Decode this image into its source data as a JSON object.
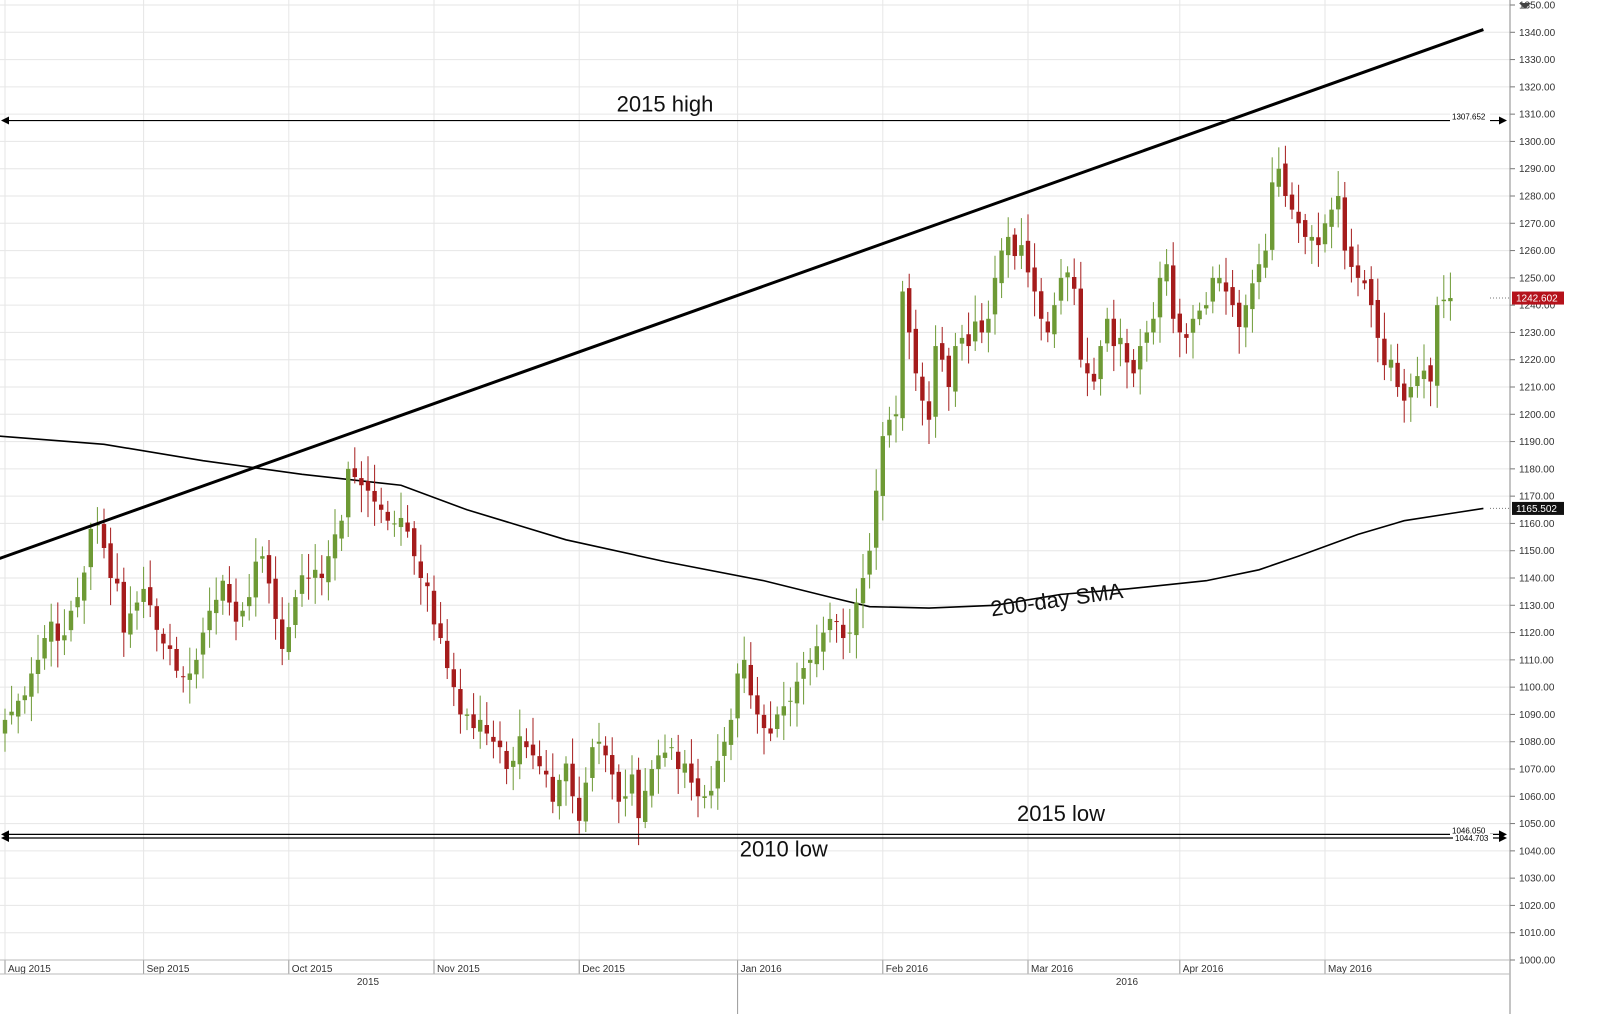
{
  "chart_data": {
    "type": "candlestick",
    "title": "",
    "xlabel": "",
    "ylabel": "",
    "ylim": [
      1000,
      1350
    ],
    "y_ticks": [
      1000,
      1010,
      1020,
      1030,
      1040,
      1050,
      1060,
      1070,
      1080,
      1090,
      1100,
      1110,
      1120,
      1130,
      1140,
      1150,
      1160,
      1170,
      1180,
      1190,
      1200,
      1210,
      1220,
      1230,
      1240,
      1250,
      1260,
      1270,
      1280,
      1290,
      1300,
      1310,
      1320,
      1330,
      1340,
      1350
    ],
    "y_tick_format": "2 decimals",
    "grid": true,
    "x_ticks": [
      {
        "label": "Aug 2015",
        "day": 0
      },
      {
        "label": "Sep 2015",
        "day": 21
      },
      {
        "label": "Oct 2015",
        "day": 43
      },
      {
        "label": "Nov 2015",
        "day": 65
      },
      {
        "label": "Dec 2015",
        "day": 87
      },
      {
        "label": "Jan 2016",
        "day": 111
      },
      {
        "label": "Feb 2016",
        "day": 133
      },
      {
        "label": "Mar 2016",
        "day": 155
      },
      {
        "label": "Apr 2016",
        "day": 178
      },
      {
        "label": "May 2016",
        "day": 200
      }
    ],
    "year_labels": [
      {
        "label": "2015",
        "day": 55
      },
      {
        "label": "2016",
        "day": 170
      }
    ],
    "candle_closes": [
      1088,
      1091,
      1095,
      1097,
      1105,
      1110,
      1118,
      1124,
      1117,
      1119,
      1128,
      1133,
      1142,
      1158,
      1160,
      1151,
      1140,
      1138,
      1120,
      1127,
      1131,
      1136,
      1130,
      1121,
      1116,
      1114,
      1106,
      1104,
      1105,
      1110,
      1120,
      1128,
      1132,
      1139,
      1131,
      1124,
      1128,
      1133,
      1146,
      1148,
      1138,
      1125,
      1114,
      1122,
      1133,
      1141,
      1140,
      1143,
      1140,
      1148,
      1156,
      1161,
      1180,
      1177,
      1174,
      1172,
      1168,
      1165,
      1161,
      1160,
      1162,
      1157,
      1148,
      1140,
      1137,
      1123,
      1118,
      1107,
      1100,
      1090,
      1090,
      1085,
      1088,
      1083,
      1080,
      1078,
      1070,
      1073,
      1082,
      1078,
      1075,
      1071,
      1068,
      1058,
      1066,
      1072,
      1060,
      1051,
      1065,
      1078,
      1080,
      1075,
      1068,
      1058,
      1060,
      1068,
      1052,
      1062,
      1070,
      1075,
      1076,
      1078,
      1070,
      1072,
      1065,
      1060,
      1060,
      1062,
      1073,
      1080,
      1088,
      1105,
      1110,
      1097,
      1090,
      1085,
      1083,
      1090,
      1093,
      1095,
      1102,
      1107,
      1110,
      1115,
      1120,
      1125,
      1124,
      1118,
      1120,
      1131,
      1140,
      1150,
      1172,
      1192,
      1198,
      1200,
      1245,
      1230,
      1215,
      1205,
      1198,
      1225,
      1220,
      1210,
      1225,
      1228,
      1225,
      1234,
      1230,
      1235,
      1250,
      1260,
      1265,
      1258,
      1262,
      1252,
      1245,
      1235,
      1230,
      1240,
      1250,
      1252,
      1246,
      1220,
      1215,
      1212,
      1225,
      1235,
      1225,
      1228,
      1219,
      1215,
      1225,
      1230,
      1235,
      1250,
      1255,
      1235,
      1230,
      1228,
      1235,
      1238,
      1240,
      1250,
      1250,
      1245,
      1240,
      1232,
      1240,
      1248,
      1255,
      1260,
      1285,
      1290,
      1280,
      1275,
      1270,
      1265,
      1265,
      1262,
      1270,
      1275,
      1280,
      1260,
      1254,
      1250,
      1248,
      1240,
      1228,
      1218,
      1220,
      1210,
      1205,
      1210,
      1214,
      1216,
      1212,
      1240,
      1242,
      1242.6
    ],
    "sma200": [
      {
        "day": -1,
        "value": 1192
      },
      {
        "day": 15,
        "value": 1189
      },
      {
        "day": 30,
        "value": 1183
      },
      {
        "day": 45,
        "value": 1178
      },
      {
        "day": 60,
        "value": 1174
      },
      {
        "day": 70,
        "value": 1165
      },
      {
        "day": 85,
        "value": 1154
      },
      {
        "day": 100,
        "value": 1146
      },
      {
        "day": 115,
        "value": 1139
      },
      {
        "day": 125,
        "value": 1133
      },
      {
        "day": 131,
        "value": 1129.5
      },
      {
        "day": 140,
        "value": 1129
      },
      {
        "day": 150,
        "value": 1130
      },
      {
        "day": 160,
        "value": 1134
      },
      {
        "day": 170,
        "value": 1136
      },
      {
        "day": 182,
        "value": 1139
      },
      {
        "day": 190,
        "value": 1143
      },
      {
        "day": 196,
        "value": 1148
      },
      {
        "day": 205,
        "value": 1156
      },
      {
        "day": 212,
        "value": 1161
      },
      {
        "day": 220,
        "value": 1164
      },
      {
        "day": 224,
        "value": 1165.5
      }
    ],
    "trendline": [
      {
        "day": -1,
        "value": 1147
      },
      {
        "day": 224,
        "value": 1341
      }
    ],
    "horizontal_lines": [
      {
        "name": "2015 high",
        "value": 1307.652,
        "tag": "1307.652"
      },
      {
        "name": "2015 low",
        "value": 1046.05,
        "tag": "1046.050"
      },
      {
        "name": "2010 low",
        "value": 1044.703,
        "tag": "1044.703"
      }
    ],
    "annotations": [
      {
        "text": "2015 high",
        "day": 100,
        "value": 1311
      },
      {
        "text": "2015 low",
        "day": 160,
        "value": 1051
      },
      {
        "text": "2010 low",
        "day": 118,
        "value": 1038
      },
      {
        "text": "200-day SMA",
        "day": 158,
        "value": 1133
      }
    ],
    "price_tags": [
      {
        "label": "1242.602",
        "value": 1242.6,
        "color": "#b5121b"
      },
      {
        "label": "1165.502",
        "value": 1165.5,
        "color": "#111111"
      }
    ],
    "colors": {
      "up": "#6e9a35",
      "down": "#a51c1c",
      "wick_up": "#6e9a35",
      "wick_down": "#a51c1c",
      "grid": "#e6e6e6",
      "line": "#000000"
    }
  }
}
